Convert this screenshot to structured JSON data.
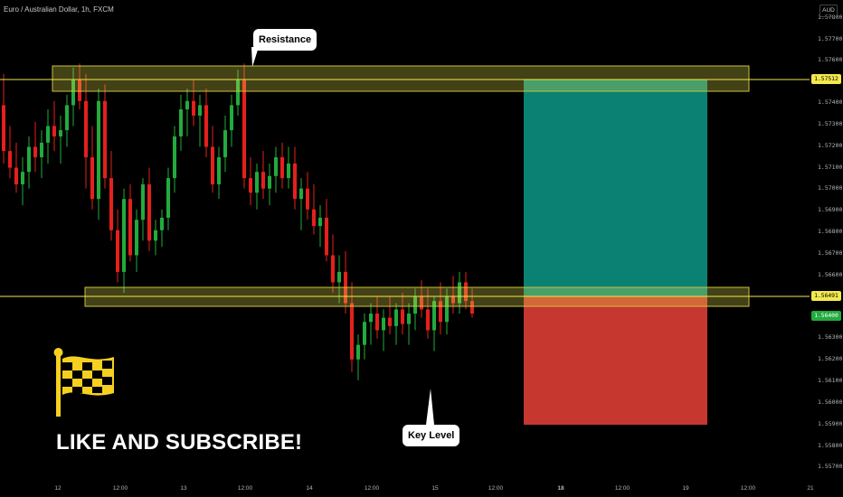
{
  "header": {
    "symbol": "Euro / Australian Dollar, 1h, FXCM",
    "currency": "AUD"
  },
  "price_axis": {
    "ticks": [
      "1.57800",
      "1.57700",
      "1.57600",
      "1.57400",
      "1.57300",
      "1.57200",
      "1.57100",
      "1.57000",
      "1.56900",
      "1.56800",
      "1.56700",
      "1.56600",
      "1.56300",
      "1.56200",
      "1.56100",
      "1.56000",
      "1.55900",
      "1.55800",
      "1.55700"
    ]
  },
  "time_axis": {
    "ticks": [
      "12",
      "12:00",
      "13",
      "12:00",
      "14",
      "12:00",
      "15",
      "12:00",
      "18",
      "12:00",
      "19",
      "12:00",
      "21"
    ]
  },
  "levels": {
    "resistance": {
      "price": "1.57512",
      "label": "Resistance",
      "color": "#f2e94e"
    },
    "key_level": {
      "price": "1.56491",
      "label": "Key Level",
      "color": "#f2e94e"
    }
  },
  "current_price": {
    "value": "1.56400",
    "color": "#22ab3d"
  },
  "position": {
    "target_color": "#0b8c7c",
    "stop_color": "#d13a33"
  },
  "cta": {
    "text": "LIKE AND SUBSCRIBE!",
    "flag_color": "#f5d020"
  },
  "chart_data": {
    "type": "candlestick",
    "y_range": [
      1.5565,
      1.5787
    ],
    "up_color": "#22ab3d",
    "down_color": "#e5201c",
    "candles": [
      [
        1.574,
        1.5755,
        1.5712,
        1.5718
      ],
      [
        1.5718,
        1.573,
        1.5705,
        1.571
      ],
      [
        1.571,
        1.5722,
        1.5698,
        1.5702
      ],
      [
        1.5702,
        1.5715,
        1.5692,
        1.5708
      ],
      [
        1.5708,
        1.5725,
        1.57,
        1.572
      ],
      [
        1.572,
        1.5732,
        1.5708,
        1.5715
      ],
      [
        1.5715,
        1.5728,
        1.5705,
        1.5722
      ],
      [
        1.5722,
        1.5738,
        1.5712,
        1.573
      ],
      [
        1.573,
        1.5742,
        1.5718,
        1.5725
      ],
      [
        1.5725,
        1.5735,
        1.5712,
        1.5728
      ],
      [
        1.5728,
        1.5745,
        1.572,
        1.574
      ],
      [
        1.574,
        1.5758,
        1.573,
        1.5752
      ],
      [
        1.5752,
        1.576,
        1.5738,
        1.5742
      ],
      [
        1.5742,
        1.5755,
        1.57,
        1.5715
      ],
      [
        1.5715,
        1.573,
        1.569,
        1.5695
      ],
      [
        1.5695,
        1.5748,
        1.5685,
        1.5742
      ],
      [
        1.5742,
        1.575,
        1.57,
        1.5705
      ],
      [
        1.5705,
        1.5718,
        1.5675,
        1.568
      ],
      [
        1.568,
        1.569,
        1.5655,
        1.566
      ],
      [
        1.566,
        1.57,
        1.565,
        1.5695
      ],
      [
        1.5695,
        1.5702,
        1.5665,
        1.5668
      ],
      [
        1.5668,
        1.569,
        1.566,
        1.5685
      ],
      [
        1.5685,
        1.5705,
        1.5675,
        1.5702
      ],
      [
        1.5702,
        1.571,
        1.567,
        1.5675
      ],
      [
        1.5675,
        1.5685,
        1.5668,
        1.568
      ],
      [
        1.568,
        1.569,
        1.5672,
        1.5686
      ],
      [
        1.5686,
        1.571,
        1.568,
        1.5705
      ],
      [
        1.5705,
        1.573,
        1.5698,
        1.5725
      ],
      [
        1.5725,
        1.5745,
        1.5718,
        1.5738
      ],
      [
        1.5738,
        1.5748,
        1.5725,
        1.5742
      ],
      [
        1.5742,
        1.5752,
        1.573,
        1.5735
      ],
      [
        1.5735,
        1.5745,
        1.572,
        1.574
      ],
      [
        1.574,
        1.5748,
        1.5715,
        1.572
      ],
      [
        1.572,
        1.573,
        1.5698,
        1.5702
      ],
      [
        1.5702,
        1.572,
        1.5695,
        1.5715
      ],
      [
        1.5715,
        1.5735,
        1.5708,
        1.5728
      ],
      [
        1.5728,
        1.5745,
        1.572,
        1.574
      ],
      [
        1.574,
        1.5757,
        1.5735,
        1.5752
      ],
      [
        1.5752,
        1.576,
        1.57,
        1.5705
      ],
      [
        1.5705,
        1.5715,
        1.5692,
        1.5698
      ],
      [
        1.5698,
        1.5712,
        1.569,
        1.5708
      ],
      [
        1.5708,
        1.5718,
        1.5695,
        1.57
      ],
      [
        1.57,
        1.5712,
        1.5692,
        1.5706
      ],
      [
        1.5706,
        1.572,
        1.5698,
        1.5715
      ],
      [
        1.5715,
        1.5722,
        1.57,
        1.5705
      ],
      [
        1.5705,
        1.572,
        1.57,
        1.5712
      ],
      [
        1.5712,
        1.572,
        1.569,
        1.5695
      ],
      [
        1.5695,
        1.5705,
        1.568,
        1.57
      ],
      [
        1.57,
        1.5708,
        1.5685,
        1.569
      ],
      [
        1.569,
        1.5702,
        1.5678,
        1.5682
      ],
      [
        1.5682,
        1.5692,
        1.5672,
        1.5686
      ],
      [
        1.5686,
        1.5695,
        1.5665,
        1.5668
      ],
      [
        1.5668,
        1.5678,
        1.565,
        1.5655
      ],
      [
        1.5655,
        1.5668,
        1.5645,
        1.566
      ],
      [
        1.566,
        1.567,
        1.564,
        1.5645
      ],
      [
        1.5645,
        1.5655,
        1.5612,
        1.5618
      ],
      [
        1.5618,
        1.563,
        1.5608,
        1.5625
      ],
      [
        1.5625,
        1.564,
        1.5618,
        1.5636
      ],
      [
        1.5636,
        1.5645,
        1.5625,
        1.564
      ],
      [
        1.564,
        1.5648,
        1.5628,
        1.5632
      ],
      [
        1.5632,
        1.5642,
        1.5622,
        1.5638
      ],
      [
        1.5638,
        1.5648,
        1.563,
        1.5634
      ],
      [
        1.5634,
        1.5645,
        1.5625,
        1.5642
      ],
      [
        1.5642,
        1.565,
        1.563,
        1.5635
      ],
      [
        1.5635,
        1.5645,
        1.5625,
        1.564
      ],
      [
        1.564,
        1.5652,
        1.5632,
        1.5648
      ],
      [
        1.5648,
        1.5656,
        1.5638,
        1.5642
      ],
      [
        1.5642,
        1.5652,
        1.5628,
        1.5632
      ],
      [
        1.5632,
        1.5648,
        1.5622,
        1.5646
      ],
      [
        1.5646,
        1.5655,
        1.563,
        1.5636
      ],
      [
        1.5636,
        1.5652,
        1.563,
        1.5648
      ],
      [
        1.5648,
        1.5658,
        1.564,
        1.5645
      ],
      [
        1.5645,
        1.566,
        1.564,
        1.5655
      ],
      [
        1.5655,
        1.566,
        1.5642,
        1.5646
      ],
      [
        1.5646,
        1.5652,
        1.5638,
        1.564
      ]
    ]
  }
}
